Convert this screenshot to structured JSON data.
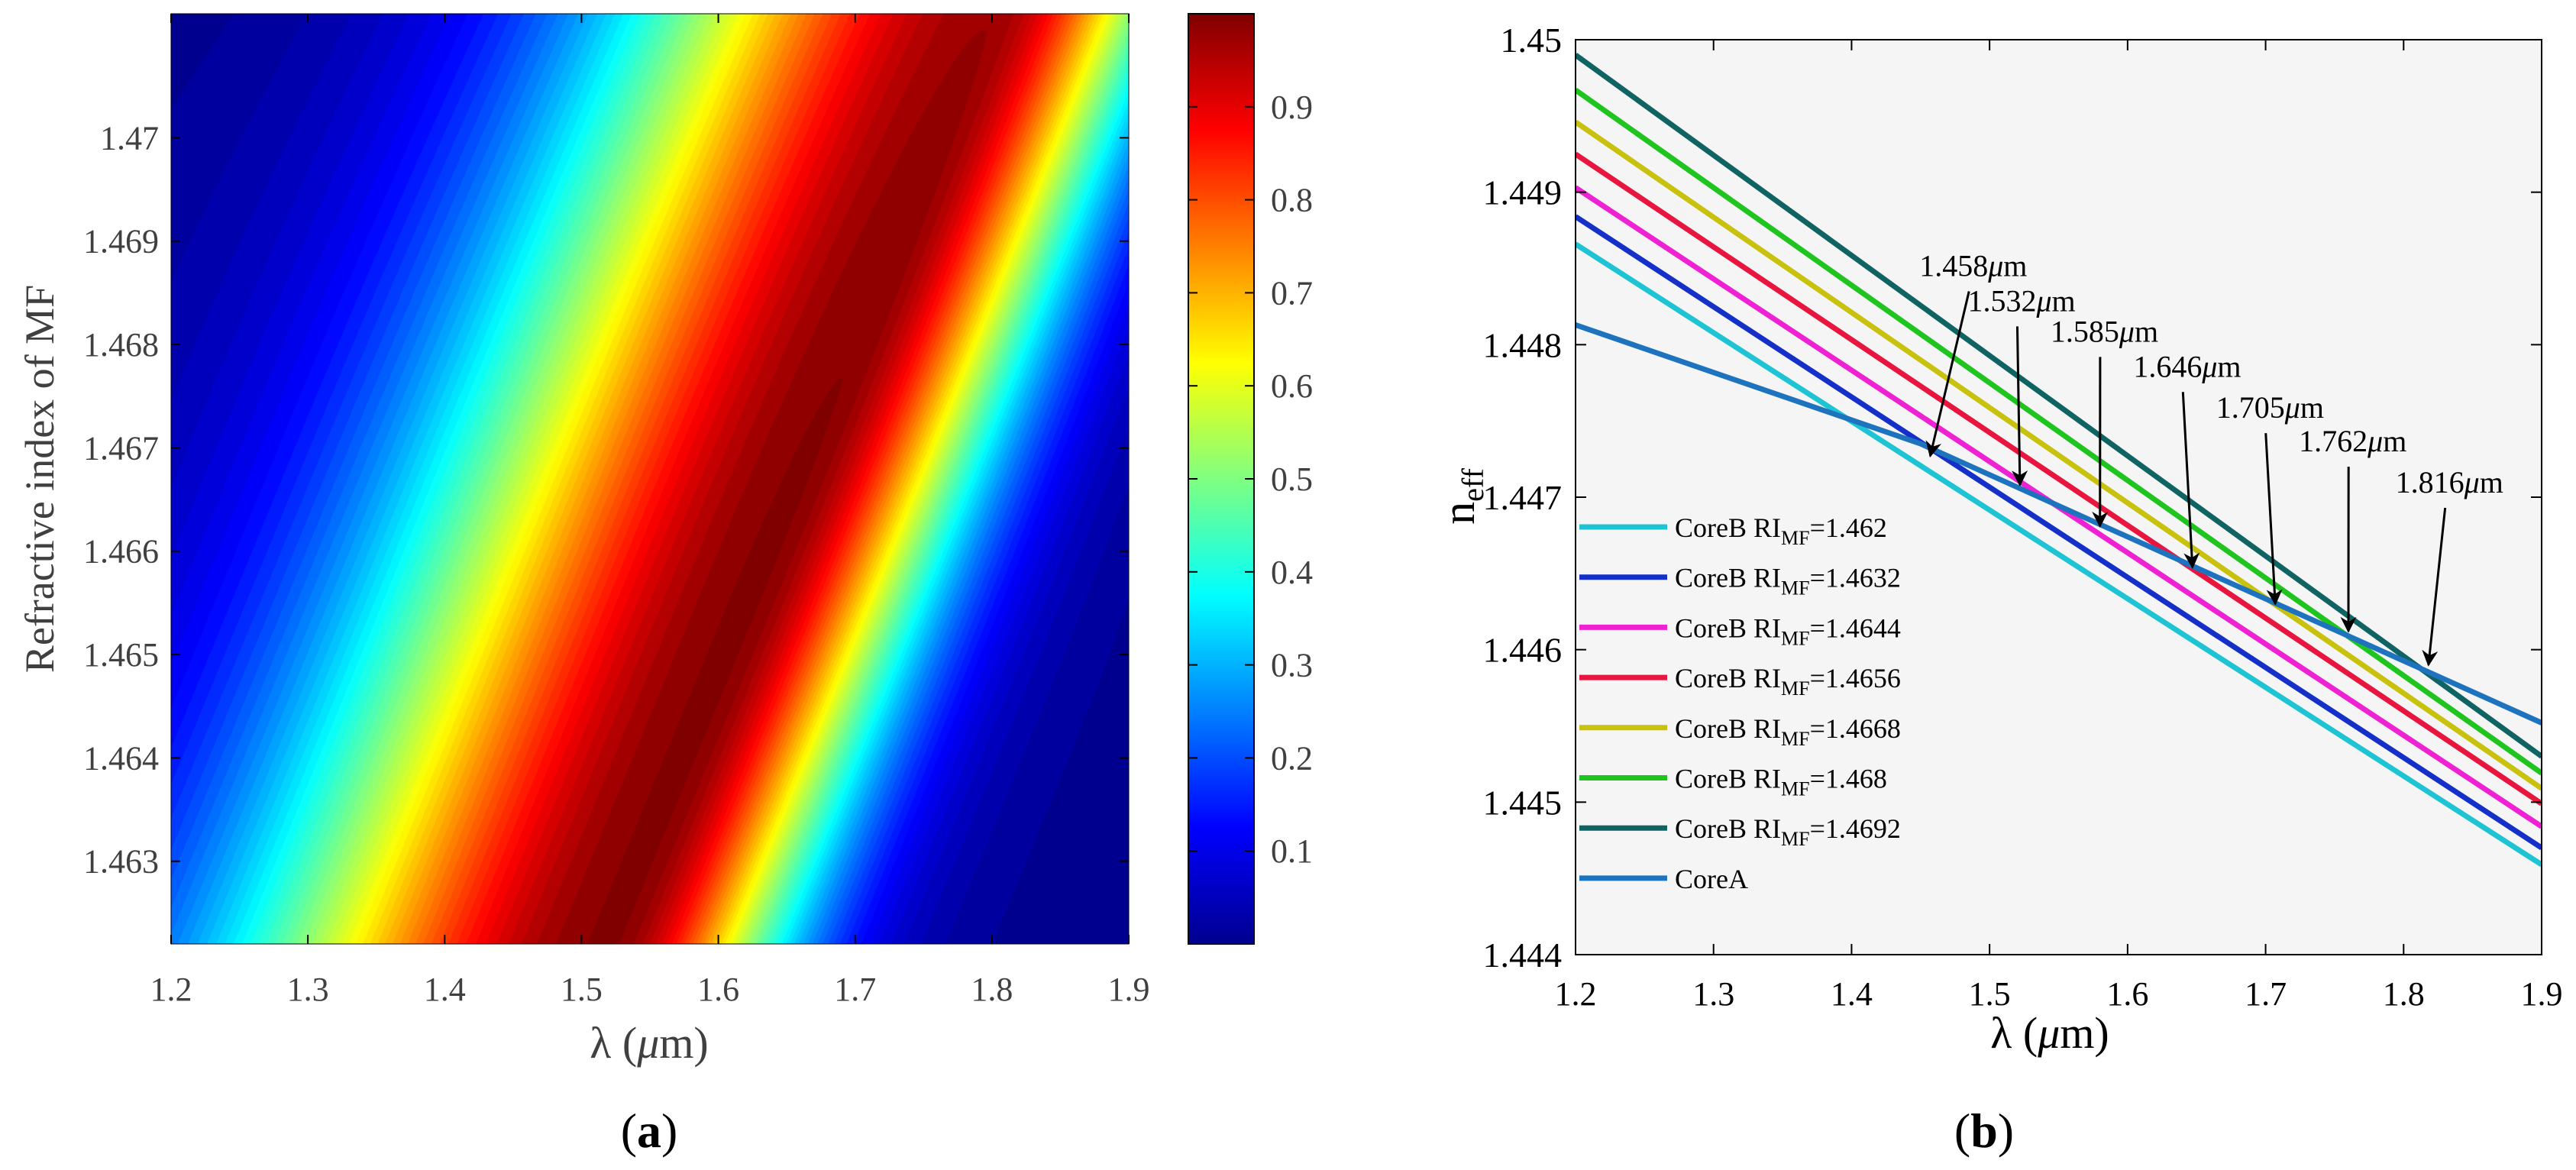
{
  "chart_data": [
    {
      "panel_label": "(a)",
      "type": "heatmap",
      "xlabel": "λ (μm)",
      "ylabel": "Refractive index of MF",
      "x_ticks": [
        1.2,
        1.3,
        1.4,
        1.5,
        1.6,
        1.7,
        1.8,
        1.9
      ],
      "x_tick_labels": [
        "1.2",
        "1.3",
        "1.4",
        "1.5",
        "1.6",
        "1.7",
        "1.8",
        "1.9"
      ],
      "y_ticks": [
        1.463,
        1.464,
        1.465,
        1.466,
        1.467,
        1.468,
        1.469,
        1.47
      ],
      "y_tick_labels": [
        "1.463",
        "1.464",
        "1.465",
        "1.466",
        "1.467",
        "1.468",
        "1.469",
        "1.47"
      ],
      "xlim": [
        1.2,
        1.9
      ],
      "ylim": [
        1.4622,
        1.4712
      ],
      "colorbar": {
        "range": [
          0.0,
          1.0
        ],
        "ticks": [
          0.1,
          0.2,
          0.3,
          0.4,
          0.5,
          0.6,
          0.7,
          0.8,
          0.9
        ],
        "tick_labels": [
          "0.1",
          "0.2",
          "0.3",
          "0.4",
          "0.5",
          "0.6",
          "0.7",
          "0.8",
          "0.9"
        ],
        "colormap": "jet",
        "stops": [
          "#00008f",
          "#0000ff",
          "#00ffff",
          "#80ff80",
          "#ffff00",
          "#ff8000",
          "#ff0000",
          "#800000"
        ]
      },
      "ridge": {
        "description": "maximum (~0.99) along a diagonal band",
        "points": [
          [
            1.52,
            1.4622
          ],
          [
            1.8,
            1.4712
          ]
        ],
        "max_value": 0.995,
        "falloff_low_side": 0.36,
        "falloff_high_side": 0.17
      }
    },
    {
      "panel_label": "(b)",
      "type": "line",
      "xlabel": "λ (μm)",
      "ylabel_main": "n",
      "ylabel_sub": "eff",
      "x_ticks": [
        1.2,
        1.3,
        1.4,
        1.5,
        1.6,
        1.7,
        1.8,
        1.9
      ],
      "x_tick_labels": [
        "1.2",
        "1.3",
        "1.4",
        "1.5",
        "1.6",
        "1.7",
        "1.8",
        "1.9"
      ],
      "y_ticks": [
        1.444,
        1.445,
        1.446,
        1.447,
        1.448,
        1.449,
        1.45
      ],
      "y_tick_labels": [
        "1.444",
        "1.445",
        "1.446",
        "1.447",
        "1.448",
        "1.449",
        "1.45"
      ],
      "xlim": [
        1.2,
        1.9
      ],
      "ylim": [
        1.444,
        1.45
      ],
      "background": "#f5f5f5",
      "series": [
        {
          "name_prefix": "CoreB RI",
          "name_sub": "MF",
          "name_suffix": "=1.462",
          "color": "#1fc4d4",
          "x": [
            1.2,
            1.9
          ],
          "y": [
            1.44866,
            1.44459
          ]
        },
        {
          "name_prefix": "CoreB RI",
          "name_sub": "MF",
          "name_suffix": "=1.4632",
          "color": "#1530c9",
          "x": [
            1.2,
            1.9
          ],
          "y": [
            1.44884,
            1.4447
          ]
        },
        {
          "name_prefix": "CoreB RI",
          "name_sub": "MF",
          "name_suffix": "=1.4644",
          "color": "#ee22d3",
          "x": [
            1.2,
            1.9
          ],
          "y": [
            1.44903,
            1.44484
          ]
        },
        {
          "name_prefix": "CoreB RI",
          "name_sub": "MF",
          "name_suffix": "=1.4656",
          "color": "#e8153f",
          "x": [
            1.2,
            1.9
          ],
          "y": [
            1.44925,
            1.44499
          ]
        },
        {
          "name_prefix": "CoreB RI",
          "name_sub": "MF",
          "name_suffix": "=1.4668",
          "color": "#c8c20e",
          "x": [
            1.2,
            1.9
          ],
          "y": [
            1.44946,
            1.44509
          ]
        },
        {
          "name_prefix": "CoreB RI",
          "name_sub": "MF",
          "name_suffix": "=1.468",
          "color": "#1fc41f",
          "x": [
            1.2,
            1.9
          ],
          "y": [
            1.44967,
            1.44519
          ]
        },
        {
          "name_prefix": "CoreB RI",
          "name_sub": "MF",
          "name_suffix": "=1.4692",
          "color": "#0f6363",
          "x": [
            1.2,
            1.9
          ],
          "y": [
            1.4499,
            1.4453
          ]
        },
        {
          "name_prefix": "CoreA",
          "name_sub": "",
          "name_suffix": "",
          "color": "#1e73be",
          "x": [
            1.2,
            1.45,
            1.9
          ],
          "y": [
            1.44813,
            1.44735,
            1.44552
          ]
        }
      ],
      "annotations": [
        {
          "text": "1.458",
          "unit": "μm",
          "point": [
            1.457,
            1.44727
          ],
          "text_pos": [
            1.51,
            1.44845
          ]
        },
        {
          "text": "1.532",
          "unit": "μm",
          "point": [
            1.522,
            1.44708
          ],
          "text_pos": [
            1.545,
            1.44822
          ]
        },
        {
          "text": "1.585",
          "unit": "μm",
          "point": [
            1.58,
            1.44681
          ],
          "text_pos": [
            1.605,
            1.44802
          ]
        },
        {
          "text": "1.646",
          "unit": "μm",
          "point": [
            1.647,
            1.44654
          ],
          "text_pos": [
            1.665,
            1.44779
          ]
        },
        {
          "text": "1.705",
          "unit": "μm",
          "point": [
            1.707,
            1.4463
          ],
          "text_pos": [
            1.725,
            1.44752
          ]
        },
        {
          "text": "1.762",
          "unit": "μm",
          "point": [
            1.76,
            1.44612
          ],
          "text_pos": [
            1.785,
            1.4473
          ]
        },
        {
          "text": "1.816",
          "unit": "μm",
          "point": [
            1.818,
            1.4459
          ],
          "text_pos": [
            1.855,
            1.44703
          ]
        }
      ]
    }
  ]
}
